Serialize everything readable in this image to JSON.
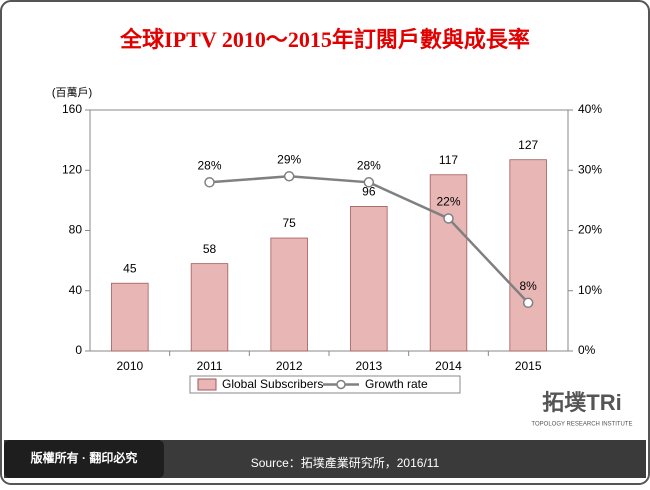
{
  "chart_data": {
    "type": "bar-line",
    "title": "全球IPTV 2010～2015年訂閱戶數與成長率",
    "y_axis_label": "(百萬戶)",
    "categories": [
      "2010",
      "2011",
      "2012",
      "2013",
      "2014",
      "2015"
    ],
    "series": [
      {
        "name": "Global Subscribers",
        "type": "bar",
        "color": "#e9b6b6",
        "values": [
          45,
          58,
          75,
          96,
          117,
          127
        ]
      },
      {
        "name": "Growth rate",
        "type": "line",
        "axis": "y2",
        "color": "#808080",
        "values": [
          null,
          28,
          29,
          28,
          22,
          8
        ],
        "value_labels": [
          null,
          "28%",
          "29%",
          "28%",
          "22%",
          "8%"
        ]
      }
    ],
    "ylim": [
      0,
      160
    ],
    "yticks": [
      0,
      40,
      80,
      120,
      160
    ],
    "y2lim": [
      0,
      40
    ],
    "y2ticks": [
      {
        "value": 0,
        "label": "0%"
      },
      {
        "value": 10,
        "label": "10%"
      },
      {
        "value": 20,
        "label": "20%"
      },
      {
        "value": 30,
        "label": "30%"
      },
      {
        "value": 40,
        "label": "40%"
      }
    ],
    "legend": "bottom"
  },
  "footer": {
    "copyright": "版權所有 · 翻印必究",
    "source": "Source：拓墣產業研究所，2016/11",
    "logo": "拓墣TRi",
    "logo_subtitle": "TOPOLOGY RESEARCH INSTITUTE"
  }
}
